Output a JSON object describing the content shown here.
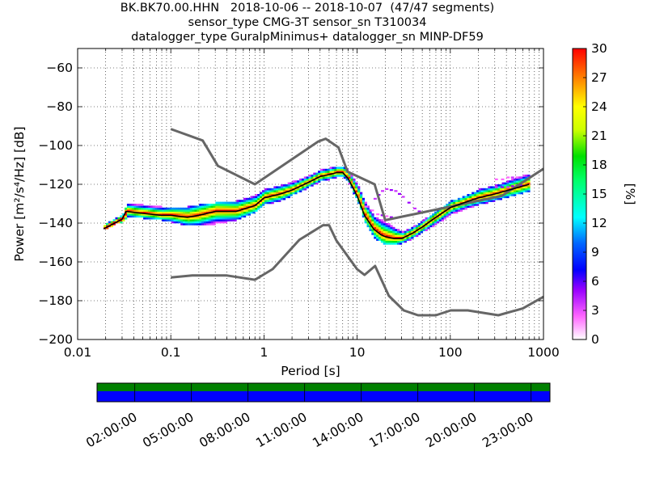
{
  "chart_data": {
    "type": "heatmap",
    "title_lines": [
      "BK.BK70.00.HHN   2018-10-06 -- 2018-10-07  (47/47 segments)",
      "sensor_type CMG-3T sensor_sn T310034",
      "datalogger_type GuralpMinimus+ datalogger_sn MINP-DF59"
    ],
    "xlabel": "Period [s]",
    "ylabel": "Power [m²/s⁴/Hz] [dB]",
    "x_scale": "log",
    "xlim": [
      0.01,
      1000
    ],
    "ylim": [
      -200,
      -50
    ],
    "x_ticks": [
      0.01,
      0.1,
      1,
      10,
      100,
      1000
    ],
    "x_tick_labels": [
      "0.01",
      "0.1",
      "1",
      "10",
      "100",
      "1000"
    ],
    "y_ticks": [
      -200,
      -180,
      -160,
      -140,
      -120,
      -100,
      -80,
      -60
    ],
    "y_tick_labels": [
      "−200",
      "−180",
      "−160",
      "−140",
      "−120",
      "−100",
      "−80",
      "−60"
    ],
    "grid": true,
    "colorbar": {
      "label": "[%]",
      "range": [
        0,
        30
      ],
      "ticks": [
        0,
        3,
        6,
        9,
        12,
        15,
        18,
        21,
        24,
        27,
        30
      ]
    },
    "mode_curve": {
      "period": [
        0.019,
        0.025,
        0.03,
        0.033,
        0.05,
        0.08,
        0.1,
        0.15,
        0.2,
        0.3,
        0.5,
        0.8,
        1,
        1.5,
        2,
        3,
        4,
        5,
        6,
        7,
        8,
        10,
        12,
        15,
        18,
        20,
        25,
        30,
        40,
        50,
        70,
        100,
        150,
        200,
        300,
        500,
        700
      ],
      "power": [
        -143,
        -140,
        -138,
        -134,
        -135,
        -136,
        -136,
        -137,
        -136,
        -134,
        -134,
        -131,
        -127,
        -125,
        -123,
        -119,
        -116,
        -115,
        -114,
        -114,
        -117,
        -126,
        -136,
        -143,
        -146,
        -147,
        -148,
        -148,
        -145,
        -142,
        -137,
        -132,
        -129,
        -127,
        -125,
        -122,
        -120
      ]
    },
    "psd_spread": {
      "period": [
        0.019,
        0.025,
        0.03,
        0.033,
        0.05,
        0.08,
        0.1,
        0.15,
        0.2,
        0.3,
        0.5,
        0.8,
        1,
        1.5,
        2,
        3,
        4,
        5,
        6,
        7,
        8,
        10,
        12,
        15,
        18,
        20,
        25,
        30,
        40,
        50,
        70,
        100,
        150,
        200,
        300,
        500,
        700
      ],
      "lower": [
        -143,
        -140,
        -139,
        -136,
        -137,
        -138,
        -139,
        -141,
        -141,
        -140,
        -138,
        -134,
        -130,
        -128,
        -125,
        -121,
        -118,
        -117,
        -116,
        -116,
        -119,
        -129,
        -140,
        -147,
        -150,
        -151,
        -151,
        -150,
        -147,
        -144,
        -140,
        -135,
        -132,
        -130,
        -128,
        -125,
        -123
      ],
      "upper": [
        -142,
        -139,
        -137,
        -131,
        -132,
        -133,
        -133,
        -133,
        -132,
        -131,
        -130,
        -127,
        -124,
        -122,
        -120,
        -117,
        -114,
        -113,
        -112,
        -112,
        -115,
        -122,
        -131,
        -138,
        -140,
        -141,
        -144,
        -146,
        -143,
        -140,
        -135,
        -130,
        -127,
        -124,
        -122,
        -118,
        -116
      ]
    },
    "nhnm": {
      "period": [
        0.1,
        0.17,
        0.4,
        0.8,
        1.24,
        2.4,
        4.3,
        5,
        6,
        10,
        12,
        15.6,
        21.9,
        31.6,
        45,
        70,
        101,
        154,
        328,
        600,
        1000
      ],
      "power": [
        -168,
        -167,
        -167,
        -169.2,
        -163.7,
        -148.6,
        -141.1,
        -141.1,
        -149,
        -163.8,
        -166.7,
        -162.1,
        -177.5,
        -185,
        -187.5,
        -187.5,
        -185,
        -185,
        -187.5,
        -184,
        -178
      ]
    },
    "nlnm": {
      "period": [
        0.1,
        0.22,
        0.32,
        0.8,
        3.8,
        4.6,
        6.3,
        7.9,
        15.4,
        20,
        354.8,
        1000
      ],
      "power": [
        -91.5,
        -97.4,
        -110.5,
        -120,
        -98,
        -96.5,
        -101,
        -113.5,
        -120,
        -138.5,
        -126,
        -112
      ]
    },
    "anomalies": [
      {
        "period": [
          15,
          18,
          20,
          25,
          30,
          40,
          50
        ],
        "power": [
          -128,
          -124,
          -123,
          -124,
          -127,
          -133,
          -136
        ]
      },
      {
        "period": [
          12,
          14,
          16,
          20,
          25,
          30
        ],
        "power": [
          -132,
          -134,
          -136,
          -137,
          -138,
          -137
        ]
      },
      {
        "period": [
          300,
          350,
          400,
          500,
          600
        ],
        "power": [
          -118,
          -118,
          -117,
          -117,
          -117
        ]
      },
      {
        "period": [
          300,
          400,
          500,
          600
        ],
        "power": [
          -122,
          -122,
          -121,
          -121
        ]
      }
    ],
    "time_axis": {
      "labels": [
        "02:00:00",
        "05:00:00",
        "08:00:00",
        "11:00:00",
        "14:00:00",
        "17:00:00",
        "20:00:00",
        "23:00:00"
      ],
      "hours": [
        2,
        5,
        8,
        11,
        14,
        17,
        20,
        23
      ],
      "range_hours": [
        0,
        24
      ],
      "bar_colors": {
        "used": "#008000",
        "available": "#0000ff"
      }
    },
    "colors": {
      "noise_models": "#666666",
      "mode_line": "#000000"
    }
  }
}
